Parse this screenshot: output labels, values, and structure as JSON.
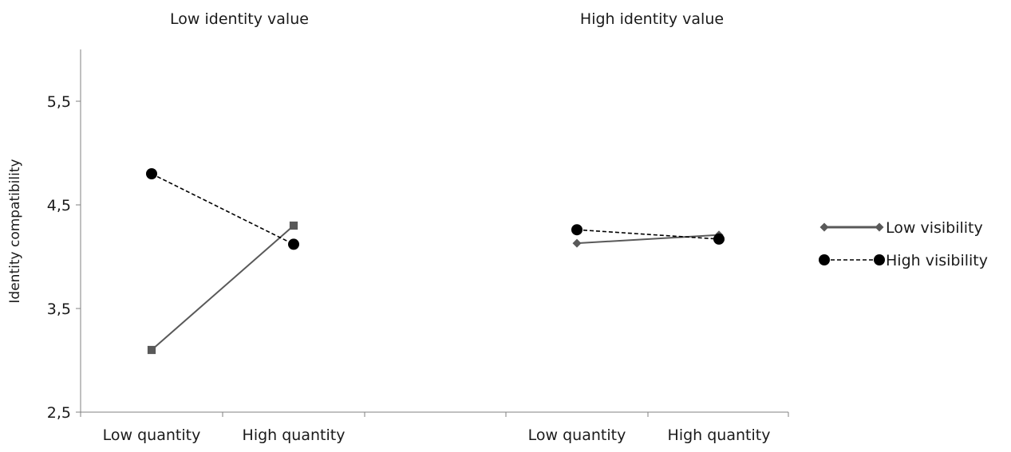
{
  "chart_data": {
    "type": "line",
    "ylabel": "Identity compatibility",
    "ylim": [
      2.5,
      6.0
    ],
    "y_ticks": [
      2.5,
      3.5,
      4.5,
      5.5
    ],
    "y_tick_labels": [
      "2,5",
      "3,5",
      "4,5",
      "5,5"
    ],
    "grid": false,
    "legend_position": "right",
    "categories": [
      "Low quantity",
      "High quantity"
    ],
    "panels": [
      {
        "title": "Low identity value",
        "series": [
          {
            "name": "Low visibility",
            "values": [
              3.1,
              4.3
            ],
            "color": "#595959",
            "marker": "square",
            "dash": "solid"
          },
          {
            "name": "High visibility",
            "values": [
              4.8,
              4.12
            ],
            "color": "#000000",
            "marker": "circle",
            "dash": "dashed"
          }
        ]
      },
      {
        "title": "High identity value",
        "series": [
          {
            "name": "Low visibility",
            "values": [
              4.13,
              4.21
            ],
            "color": "#595959",
            "marker": "diamond",
            "dash": "solid"
          },
          {
            "name": "High visibility",
            "values": [
              4.26,
              4.17
            ],
            "color": "#000000",
            "marker": "circle",
            "dash": "dashed"
          }
        ]
      }
    ],
    "legend": [
      {
        "name": "Low visibility",
        "color": "#595959",
        "marker": "diamond",
        "dash": "solid"
      },
      {
        "name": "High visibility",
        "color": "#000000",
        "marker": "circle",
        "dash": "dashed"
      }
    ]
  }
}
